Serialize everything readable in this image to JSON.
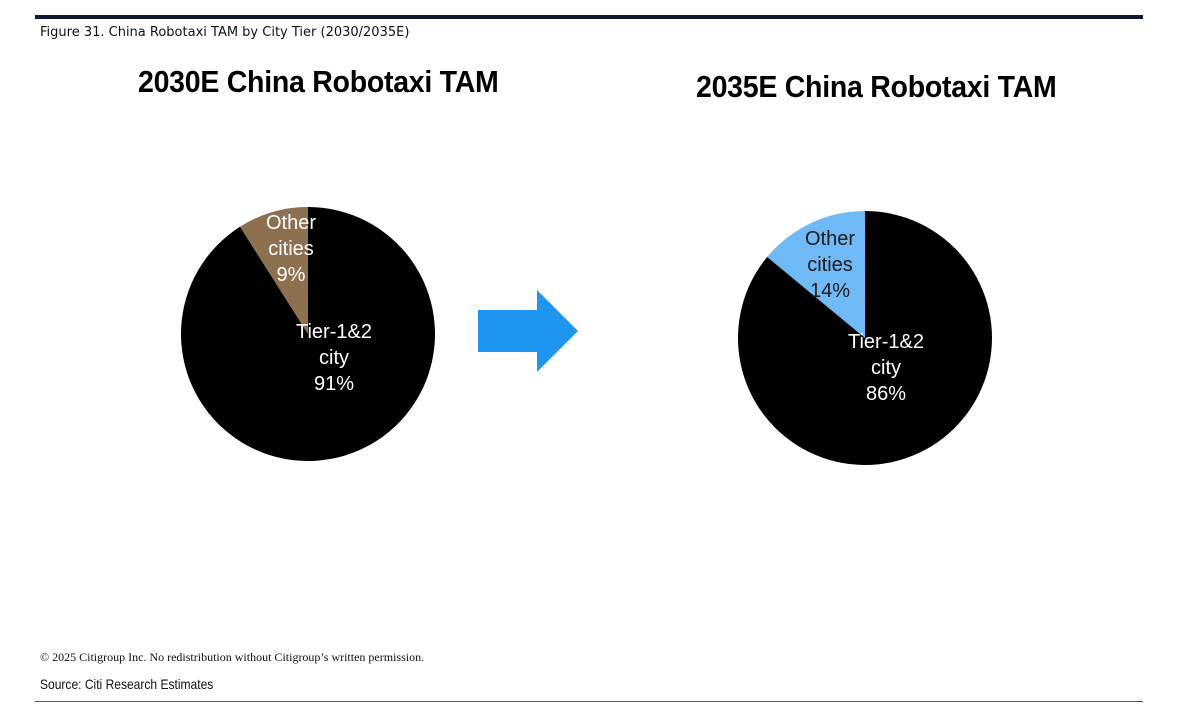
{
  "figure_title": "Figure 31. China Robotaxi TAM by City Tier (2030/2035E)",
  "copyright": "© 2025 Citigroup Inc. No redistribution without Citigroup’s written permission.",
  "source": "Source: Citi Research Estimates",
  "colors": {
    "tier12": "#000000",
    "other2030": "#8c704f",
    "other2035": "#70b9f7",
    "arrow": "#1e96f0",
    "label_dark_bg": "#ffffff",
    "label_light_bg": "#1a1a1a"
  },
  "arrow_icon": "right-arrow-icon",
  "chart_data": [
    {
      "type": "pie",
      "title": "2030E China Robotaxi TAM",
      "slices": [
        {
          "label_lines": [
            "Other",
            "cities",
            "9%"
          ],
          "name": "Other cities",
          "value": 9,
          "color": "#8c704f"
        },
        {
          "label_lines": [
            "Tier-1&2",
            "city",
            "91%"
          ],
          "name": "Tier-1&2 city",
          "value": 91,
          "color": "#000000"
        }
      ]
    },
    {
      "type": "pie",
      "title": "2035E China Robotaxi TAM",
      "slices": [
        {
          "label_lines": [
            "Other",
            "cities",
            "14%"
          ],
          "name": "Other cities",
          "value": 14,
          "color": "#70b9f7"
        },
        {
          "label_lines": [
            "Tier-1&2",
            "city",
            "86%"
          ],
          "name": "Tier-1&2 city",
          "value": 86,
          "color": "#000000"
        }
      ]
    }
  ]
}
